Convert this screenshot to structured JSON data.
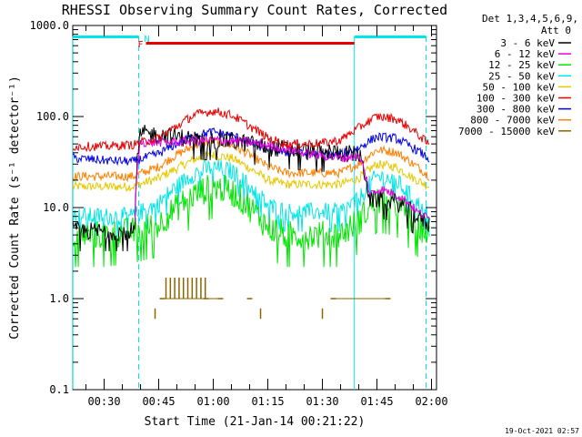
{
  "chart_data": {
    "type": "line",
    "title": "RHESSI Observing Summary Count Rates, Corrected",
    "xlabel": "Start Time (21-Jan-14 00:21:22)",
    "ylabel": "Corrected Count Rate (s⁻¹ detector⁻¹)",
    "yscale": "log",
    "ylim": [
      0.1,
      1000
    ],
    "xlim_min": [
      21.37,
      121.37
    ],
    "y_ticks": [
      {
        "value": 1000,
        "label": "1000.0"
      },
      {
        "value": 100,
        "label": "100.0"
      },
      {
        "value": 10,
        "label": "10.0"
      },
      {
        "value": 1,
        "label": "1.0"
      },
      {
        "value": 0.1,
        "label": "0.1"
      }
    ],
    "x_ticks": [
      {
        "value": 30,
        "label": "00:30"
      },
      {
        "value": 45,
        "label": "00:45"
      },
      {
        "value": 60,
        "label": "01:00"
      },
      {
        "value": 75,
        "label": "01:15"
      },
      {
        "value": 90,
        "label": "01:30"
      },
      {
        "value": 105,
        "label": "01:45"
      },
      {
        "value": 120,
        "label": "02:00"
      }
    ],
    "legend": {
      "header": [
        "Det 1,3,4,5,6,9,",
        "Att 0"
      ],
      "placement": "right"
    },
    "series": [
      {
        "name": "3 - 6 keV",
        "color": "#000000",
        "x": [
          21.4,
          38.5,
          40.0,
          45,
          50,
          55,
          60,
          65,
          70,
          75,
          80,
          85,
          90,
          95,
          100,
          103,
          106,
          110,
          113,
          116,
          119.4
        ],
        "values": [
          5.5,
          5.5,
          65,
          63,
          60,
          56,
          55,
          54,
          50,
          46,
          44,
          42,
          41,
          40,
          38,
          12,
          12.5,
          11.5,
          10,
          8,
          6.5
        ]
      },
      {
        "name": "6 - 12 keV",
        "color": "#e600e6",
        "x": [
          38.5,
          40.0,
          45,
          50,
          55,
          60,
          65,
          70,
          75,
          80,
          85,
          90,
          95,
          100,
          103,
          106,
          110,
          113,
          116,
          119.4
        ],
        "values": [
          7,
          52,
          52,
          53,
          54,
          55,
          54,
          52,
          48,
          44,
          40,
          37,
          35,
          37,
          14,
          16,
          14,
          12,
          9,
          7.5
        ]
      },
      {
        "name": "12 - 25 keV",
        "color": "#00e600",
        "x": [
          21.4,
          30,
          38,
          45,
          50,
          55,
          60,
          65,
          70,
          75,
          80,
          85,
          90,
          95,
          100,
          105,
          110,
          115,
          119.4
        ],
        "values": [
          5,
          5,
          5.5,
          6.5,
          10,
          14,
          17,
          15,
          10,
          6,
          5,
          5,
          5,
          5,
          7,
          12,
          11,
          7,
          5
        ]
      },
      {
        "name": "25 - 50 keV",
        "color": "#00e6e6",
        "x": [
          21.4,
          30,
          38,
          45,
          50,
          55,
          60,
          65,
          70,
          75,
          80,
          85,
          90,
          95,
          100,
          105,
          110,
          115,
          119.4
        ],
        "values": [
          8,
          8,
          8,
          11,
          17,
          24,
          28,
          25,
          17,
          10.5,
          9,
          9,
          9,
          9,
          12,
          22,
          20,
          12,
          8
        ]
      },
      {
        "name": "50 - 100 keV",
        "color": "#e6c800",
        "x": [
          21.4,
          30,
          38,
          45,
          50,
          55,
          60,
          65,
          70,
          75,
          80,
          85,
          90,
          95,
          100,
          105,
          110,
          115,
          119.4
        ],
        "values": [
          17,
          17,
          17,
          21,
          27,
          34,
          38,
          35,
          27,
          20,
          18,
          18,
          18,
          18,
          21,
          30,
          28,
          21,
          17
        ]
      },
      {
        "name": "100 - 300 keV",
        "color": "#e60000",
        "x": [
          21.4,
          30,
          38,
          45,
          50,
          55,
          60,
          65,
          70,
          75,
          80,
          85,
          90,
          95,
          100,
          105,
          110,
          115,
          119.4
        ],
        "values": [
          47,
          47,
          49,
          58,
          78,
          105,
          115,
          104,
          78,
          58,
          50,
          50,
          51,
          55,
          75,
          100,
          95,
          70,
          48
        ]
      },
      {
        "name": "300 - 800 keV",
        "color": "#0000e6",
        "x": [
          21.4,
          30,
          38,
          45,
          50,
          55,
          60,
          65,
          70,
          75,
          80,
          85,
          90,
          95,
          100,
          105,
          110,
          115,
          119.4
        ],
        "values": [
          35,
          33,
          32,
          39,
          50,
          62,
          68,
          62,
          52,
          43,
          40,
          39,
          38,
          38,
          45,
          60,
          58,
          45,
          34
        ]
      },
      {
        "name": "800 - 7000 keV",
        "color": "#ff7f00",
        "x": [
          21.4,
          30,
          38,
          45,
          50,
          55,
          60,
          65,
          70,
          75,
          80,
          85,
          90,
          95,
          100,
          105,
          110,
          115,
          119.4
        ],
        "values": [
          22,
          22,
          22,
          28,
          38,
          48,
          54,
          48,
          38,
          28,
          24,
          24,
          24,
          24,
          30,
          43,
          41,
          30,
          22
        ]
      },
      {
        "name": "7000 - 15000 keV",
        "color": "#8c6400",
        "x": [
          46,
          58,
          62,
          70,
          93,
          108
        ],
        "values": [
          1.0,
          1.0,
          1.0,
          1.0,
          1.0,
          1.0
        ]
      }
    ],
    "annotations": {
      "night_bars": {
        "label": "N",
        "color": "#00e6e6",
        "ranges": [
          [
            21.4,
            39.5
          ],
          [
            98.8,
            118.5
          ]
        ]
      },
      "flare_bar": {
        "label": "F",
        "color": "#e60000",
        "ranges": [
          [
            41.5,
            98.8
          ]
        ]
      },
      "night_boundaries_x": [
        21.4,
        39.5,
        98.8,
        118.5
      ]
    }
  },
  "timestamp": "19-Oct-2021 02:57"
}
